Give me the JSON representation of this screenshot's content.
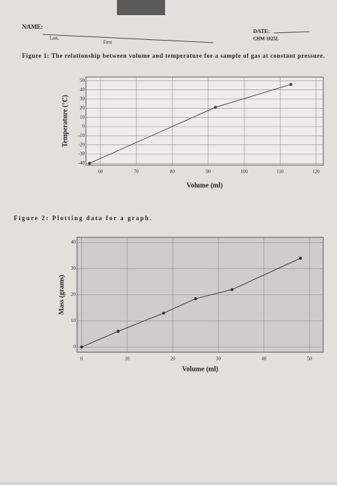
{
  "header": {
    "name_label": "NAME:",
    "last": "Last,",
    "first": "First",
    "date_label": "DATE:",
    "course": "CHM 1025L"
  },
  "chart_data": [
    {
      "type": "line",
      "title": "Figure 1: The relationship between volume and temperature for a sample of gas at constant pressure.",
      "x_label": "Volume (ml)",
      "y_label": "Temperature (°C)",
      "x": [
        57,
        92,
        113
      ],
      "series": [
        {
          "color": "#444444",
          "values": [
            -40,
            21,
            46
          ]
        }
      ],
      "xlim": [
        56,
        122
      ],
      "xticks": [
        60,
        70,
        80,
        90,
        100,
        110,
        120
      ],
      "ylim": [
        -42,
        54
      ],
      "yticks": [
        -40,
        -30,
        -20,
        -10,
        0,
        10,
        20,
        30,
        40,
        50
      ],
      "grid": true
    },
    {
      "type": "line",
      "title": "Figure 2: Plotting data for a graph.",
      "x_label": "Volume (ml)",
      "y_label": "Mass (grams)",
      "x": [
        0,
        8,
        18,
        25,
        33,
        48
      ],
      "series": [
        {
          "color": "#333333",
          "values": [
            0,
            6,
            13,
            18.5,
            22,
            34
          ]
        }
      ],
      "xlim": [
        -1,
        53
      ],
      "xticks": [
        0,
        10,
        20,
        30,
        40,
        50
      ],
      "ylim": [
        -2,
        42
      ],
      "yticks": [
        0,
        10,
        20,
        30,
        40
      ],
      "grid": true
    }
  ]
}
